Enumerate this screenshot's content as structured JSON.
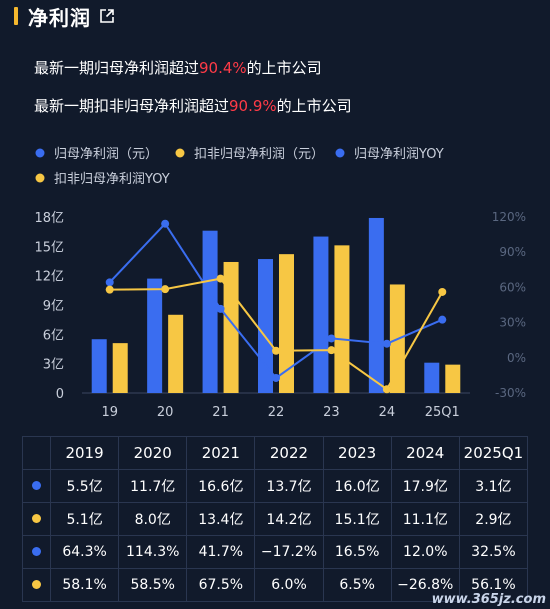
{
  "header": {
    "title": "净利润",
    "icon": "external-link-icon"
  },
  "notes": [
    {
      "prefix": "最新一期归母净利润超过",
      "highlight": "90.4%",
      "suffix": "的上市公司"
    },
    {
      "prefix": "最新一期扣非归母净利润超过",
      "highlight": "90.9%",
      "suffix": "的上市公司"
    }
  ],
  "colors": {
    "blue": "#3a6df0",
    "yellow": "#f7c744",
    "highlight": "#ff3b47",
    "accent": "#f5b82e"
  },
  "chart_data": {
    "type": "bar",
    "categories": [
      "19",
      "20",
      "21",
      "22",
      "23",
      "24",
      "25Q1"
    ],
    "series": [
      {
        "name": "归母净利润（元）",
        "kind": "bar",
        "axis": "left",
        "color": "#3a6df0",
        "values": [
          5.5,
          11.7,
          16.6,
          13.7,
          16.0,
          17.9,
          3.1
        ]
      },
      {
        "name": "扣非归母净利润（元）",
        "kind": "bar",
        "axis": "left",
        "color": "#f7c744",
        "values": [
          5.1,
          8.0,
          13.4,
          14.2,
          15.1,
          11.1,
          2.9
        ]
      },
      {
        "name": "归母净利润YOY",
        "kind": "line",
        "axis": "right",
        "color": "#3a6df0",
        "values": [
          64.3,
          114.3,
          41.7,
          -17.2,
          16.5,
          12.0,
          32.5
        ]
      },
      {
        "name": "扣非归母净利润YOY",
        "kind": "line",
        "axis": "right",
        "color": "#f7c744",
        "values": [
          58.1,
          58.5,
          67.5,
          6.0,
          6.5,
          -26.8,
          56.1
        ]
      }
    ],
    "ylim_left": [
      0,
      18
    ],
    "ylim_right": [
      -30,
      120
    ],
    "yticks_left": [
      "0",
      "3亿",
      "6亿",
      "9亿",
      "12亿",
      "15亿",
      "18亿"
    ],
    "yticks_right": [
      "-30%",
      "0%",
      "30%",
      "60%",
      "90%",
      "120%"
    ],
    "legend_position": "top-left",
    "grid": false
  },
  "table": {
    "headers": [
      "2019",
      "2020",
      "2021",
      "2022",
      "2023",
      "2024",
      "2025Q1"
    ],
    "rows": [
      {
        "color": "#3a6df0",
        "cells": [
          "5.5亿",
          "11.7亿",
          "16.6亿",
          "13.7亿",
          "16.0亿",
          "17.9亿",
          "3.1亿"
        ]
      },
      {
        "color": "#f7c744",
        "cells": [
          "5.1亿",
          "8.0亿",
          "13.4亿",
          "14.2亿",
          "15.1亿",
          "11.1亿",
          "2.9亿"
        ]
      },
      {
        "color": "#3a6df0",
        "cells": [
          "64.3%",
          "114.3%",
          "41.7%",
          "−17.2%",
          "16.5%",
          "12.0%",
          "32.5%"
        ]
      },
      {
        "color": "#f7c744",
        "cells": [
          "58.1%",
          "58.5%",
          "67.5%",
          "6.0%",
          "6.5%",
          "−26.8%",
          "56.1%"
        ]
      }
    ]
  },
  "watermark": "www.365jz.com"
}
